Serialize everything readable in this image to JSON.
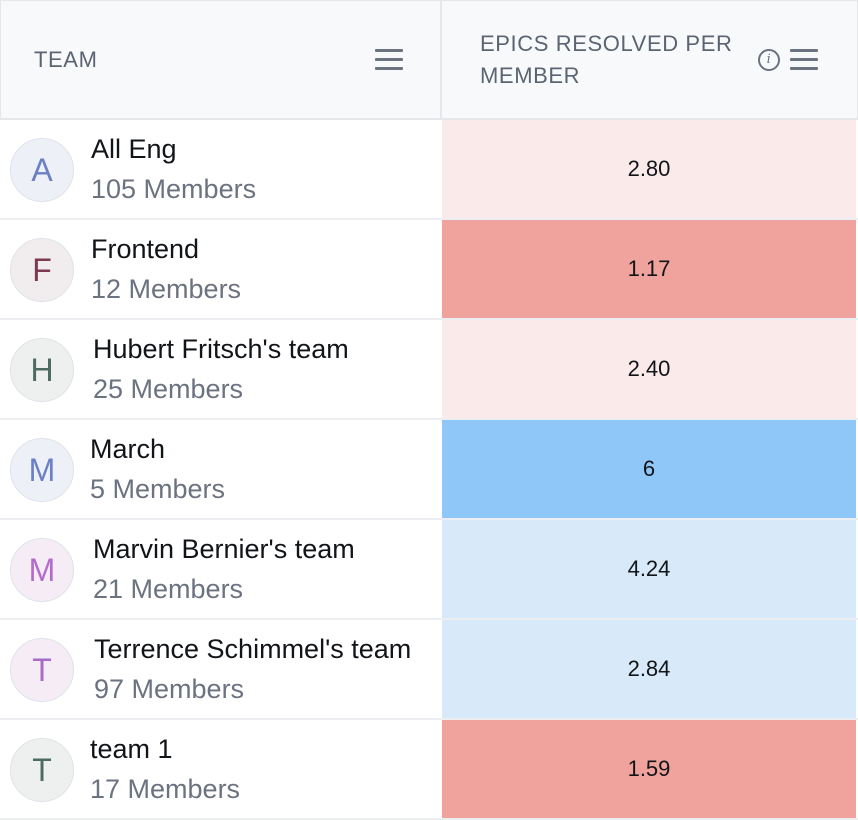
{
  "header": {
    "team_label": "TEAM",
    "metric_label": "EPICS RESOLVED PER MEMBER",
    "info_icon": "info-icon",
    "menu_icon": "menu-icon"
  },
  "rows": [
    {
      "initial": "A",
      "name": "All Eng",
      "members": "105 Members",
      "value": "2.80",
      "avatar_bg": "#eef0f7",
      "avatar_color": "#6b7fc4",
      "cell_bg": "#fbeaea"
    },
    {
      "initial": "F",
      "name": "Frontend",
      "members": "12 Members",
      "value": "1.17",
      "avatar_bg": "#f1ecee",
      "avatar_color": "#7b3a52",
      "cell_bg": "#f0a39c"
    },
    {
      "initial": "H",
      "name": "Hubert Fritsch's team",
      "members": "25 Members",
      "value": "2.40",
      "avatar_bg": "#eef0ef",
      "avatar_color": "#4e6b63",
      "cell_bg": "#fbeaea"
    },
    {
      "initial": "M",
      "name": "March",
      "members": "5 Members",
      "value": "6",
      "avatar_bg": "#eef0f7",
      "avatar_color": "#6b7fc4",
      "cell_bg": "#8fc8f8"
    },
    {
      "initial": "M",
      "name": "Marvin Bernier's team",
      "members": "21 Members",
      "value": "4.24",
      "avatar_bg": "#f5ecf6",
      "avatar_color": "#b46ccc",
      "cell_bg": "#d8eaf9"
    },
    {
      "initial": "T",
      "name": "Terrence Schimmel's team",
      "members": "97 Members",
      "value": "2.84",
      "avatar_bg": "#f5ecf6",
      "avatar_color": "#a86bc6",
      "cell_bg": "#d8eaf9"
    },
    {
      "initial": "T",
      "name": "team 1",
      "members": "17 Members",
      "value": "1.59",
      "avatar_bg": "#eef0ef",
      "avatar_color": "#4e6b63",
      "cell_bg": "#f0a39c"
    }
  ]
}
